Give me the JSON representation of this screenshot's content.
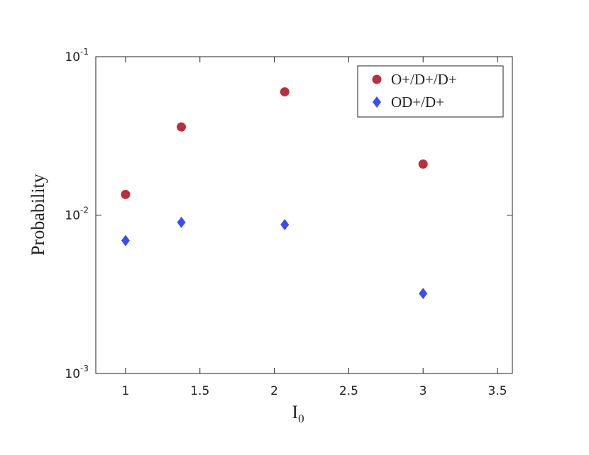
{
  "chart_data": {
    "type": "scatter",
    "x_label": "I",
    "x_label_subscript": "0",
    "y_label": "Probability",
    "xlim": [
      0.8,
      3.6
    ],
    "xticks": [
      1,
      1.5,
      2,
      2.5,
      3,
      3.5
    ],
    "ylim": [
      0.001,
      0.1
    ],
    "y_log": true,
    "yticks": [
      {
        "value": 0.001,
        "label": "10",
        "exponent": "-3"
      },
      {
        "value": 0.01,
        "label": "10",
        "exponent": "-2"
      },
      {
        "value": 0.1,
        "label": "10",
        "exponent": "-1"
      }
    ],
    "legend": "upper right",
    "series": [
      {
        "name": "O+/D+/D+",
        "color": "#b8303e",
        "marker": "circle",
        "x": [
          1,
          1.375,
          2.07,
          3
        ],
        "values": [
          0.0135,
          0.036,
          0.06,
          0.021
        ]
      },
      {
        "name": "OD+/D+",
        "color": "#3a4ef0",
        "marker": "diamond",
        "x": [
          1,
          1.375,
          2.07,
          3
        ],
        "values": [
          0.0069,
          0.009,
          0.0087,
          0.0032
        ]
      }
    ]
  }
}
